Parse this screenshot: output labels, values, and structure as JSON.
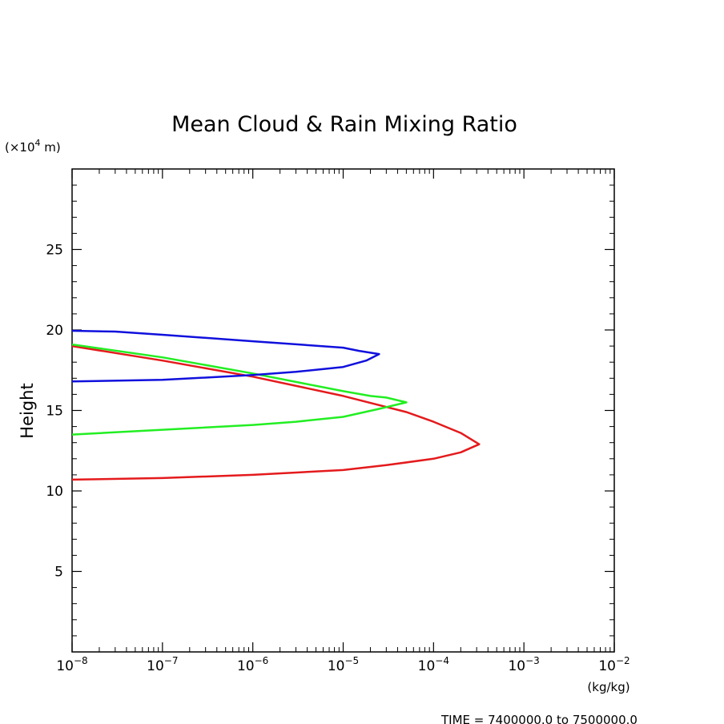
{
  "chart_data": {
    "type": "line",
    "title": "Mean Cloud & Rain Mixing Ratio",
    "ylabel": "Height",
    "yunit_prefix": "(×10",
    "yunit_exp": "4",
    "yunit_suffix": " m)",
    "xunit": "(kg/kg)",
    "footer": "TIME = 7400000.0 to 7500000.0",
    "xscale": "log",
    "xlim": [
      1e-08,
      0.01
    ],
    "ylim": [
      0,
      30
    ],
    "xticks": [
      {
        "exp": "−8",
        "value": 1e-08
      },
      {
        "exp": "−7",
        "value": 1e-07
      },
      {
        "exp": "−6",
        "value": 1e-06
      },
      {
        "exp": "−5",
        "value": 1e-05
      },
      {
        "exp": "−4",
        "value": 0.0001
      },
      {
        "exp": "−3",
        "value": 0.001
      },
      {
        "exp": "−2",
        "value": 0.01
      }
    ],
    "xtick_base": "10",
    "yticks": [
      5,
      10,
      15,
      20,
      25
    ],
    "grid": false,
    "series": [
      {
        "color": "#e41a1c",
        "points": [
          [
            1e-08,
            19.0
          ],
          [
            1e-07,
            18.1
          ],
          [
            1e-06,
            17.1
          ],
          [
            1e-05,
            15.9
          ],
          [
            5e-05,
            14.9
          ],
          [
            0.0001,
            14.3
          ],
          [
            0.0002,
            13.6
          ],
          [
            0.00032,
            12.9
          ],
          [
            0.0002,
            12.4
          ],
          [
            0.0001,
            12.0
          ],
          [
            3e-05,
            11.6
          ],
          [
            1e-05,
            11.3
          ],
          [
            1e-06,
            11.0
          ],
          [
            1e-07,
            10.8
          ],
          [
            1e-08,
            10.7
          ]
        ]
      },
      {
        "color": "#22ee22",
        "points": [
          [
            1e-08,
            19.1
          ],
          [
            1e-07,
            18.3
          ],
          [
            1e-06,
            17.3
          ],
          [
            1e-05,
            16.2
          ],
          [
            2e-05,
            15.9
          ],
          [
            3e-05,
            15.8
          ],
          [
            5e-05,
            15.5
          ],
          [
            2.5e-05,
            15.1
          ],
          [
            1e-05,
            14.6
          ],
          [
            3e-06,
            14.3
          ],
          [
            1e-06,
            14.1
          ],
          [
            1e-07,
            13.8
          ],
          [
            1e-08,
            13.5
          ]
        ]
      },
      {
        "color": "#1010dd",
        "points": [
          [
            1e-08,
            19.95
          ],
          [
            3e-08,
            19.9
          ],
          [
            1e-07,
            19.7
          ],
          [
            1e-06,
            19.3
          ],
          [
            1e-05,
            18.9
          ],
          [
            1.5e-05,
            18.7
          ],
          [
            2.5e-05,
            18.5
          ],
          [
            1.8e-05,
            18.1
          ],
          [
            1e-05,
            17.7
          ],
          [
            3e-06,
            17.4
          ],
          [
            1e-06,
            17.2
          ],
          [
            1e-07,
            16.9
          ],
          [
            1e-08,
            16.8
          ]
        ]
      }
    ]
  }
}
